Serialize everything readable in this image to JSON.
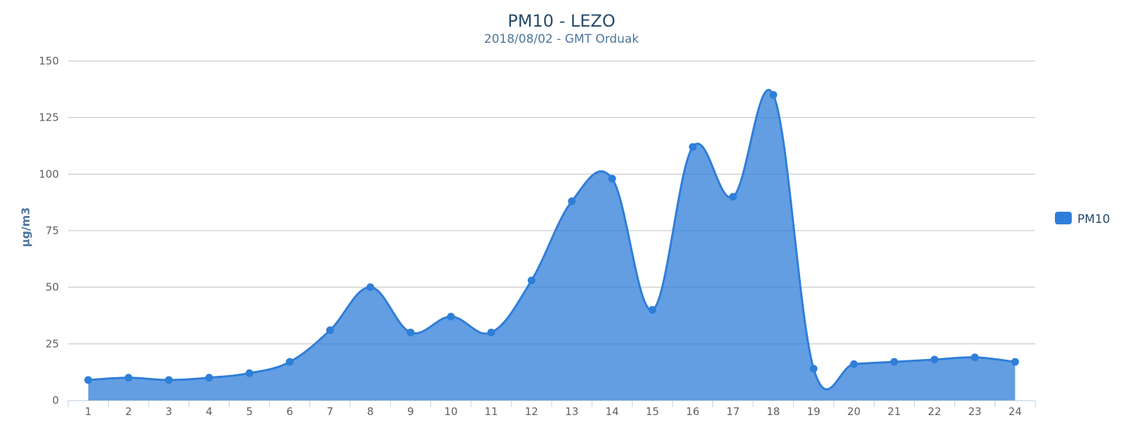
{
  "chart_data": {
    "type": "area",
    "title": "PM10 - LEZO",
    "subtitle": "2018/08/02 - GMT Orduak",
    "xlabel": "",
    "ylabel": "µg/m3",
    "categories": [
      "1",
      "2",
      "3",
      "4",
      "5",
      "6",
      "7",
      "8",
      "9",
      "10",
      "11",
      "12",
      "13",
      "14",
      "15",
      "16",
      "17",
      "18",
      "19",
      "20",
      "21",
      "22",
      "23",
      "24"
    ],
    "yticks": [
      "0",
      "25",
      "50",
      "75",
      "100",
      "125",
      "150"
    ],
    "ylim": [
      0,
      150
    ],
    "grid": true,
    "legend_position": "right",
    "series": [
      {
        "name": "PM10",
        "color": "#2f7ed8",
        "values": [
          9,
          10,
          9,
          10,
          12,
          17,
          31,
          50,
          30,
          37,
          30,
          53,
          88,
          98,
          40,
          112,
          90,
          135,
          14,
          16,
          17,
          18,
          19,
          17
        ]
      }
    ]
  }
}
